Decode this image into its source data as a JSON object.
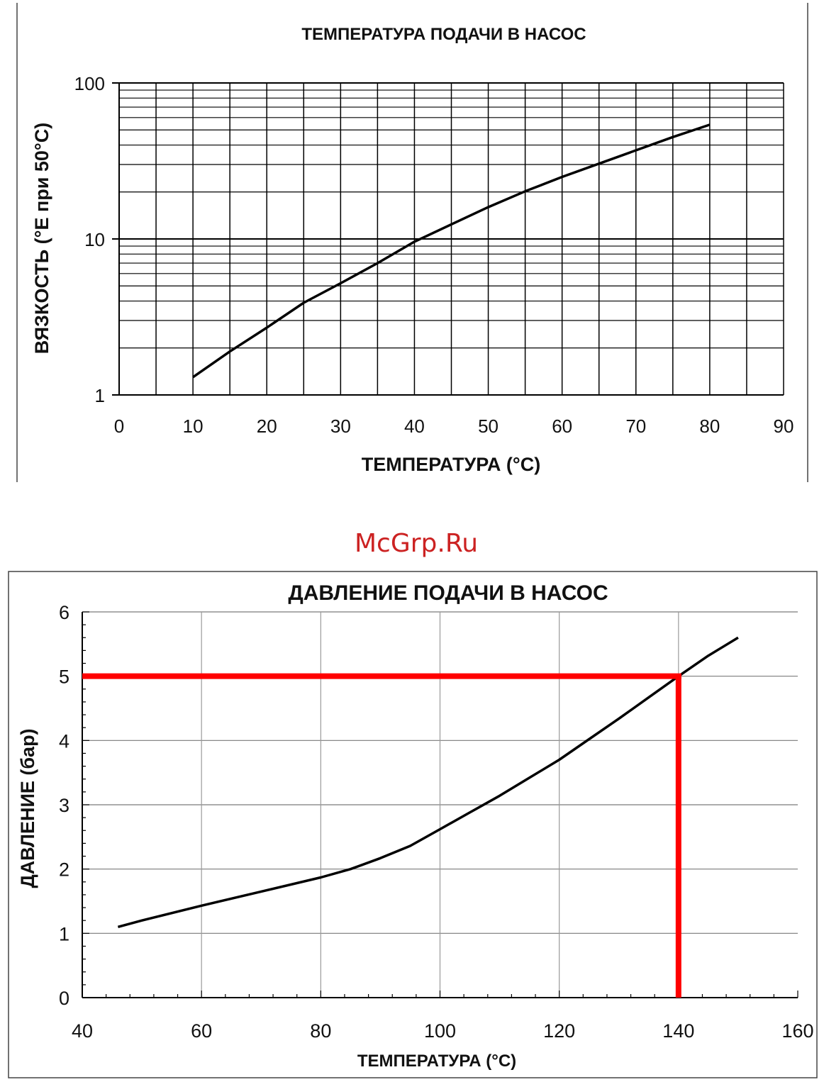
{
  "chart_data": [
    {
      "type": "line",
      "title": "ТЕМПЕРАТУРА ПОДАЧИ В НАСОС",
      "xlabel": "ТЕМПЕРАТУРА (°C)",
      "ylabel": "ВЯЗКОСТЬ (°E при 50°C)",
      "xlim": [
        0,
        90
      ],
      "ylim": [
        1,
        100
      ],
      "y_scale": "log",
      "grid": true,
      "x_ticks": [
        "0",
        "10",
        "20",
        "30",
        "40",
        "50",
        "60",
        "70",
        "80",
        "90"
      ],
      "y_ticks": [
        "1",
        "10",
        "100"
      ],
      "line_color": "#000000",
      "series": [
        {
          "x": [
            10,
            15,
            20,
            25,
            30,
            35,
            40,
            45,
            50,
            55,
            60,
            65,
            70,
            75,
            80
          ],
          "y": [
            1.3,
            1.9,
            2.7,
            3.9,
            5.2,
            7.0,
            9.6,
            12.4,
            16.0,
            20.2,
            25.0,
            30.4,
            37.0,
            45.0,
            54.0
          ]
        }
      ]
    },
    {
      "type": "line",
      "title": "ДАВЛЕНИЕ ПОДАЧИ В НАСОС",
      "xlabel": "ТЕМПЕРАТУРА (°C)",
      "ylabel": "ДАВЛЕНИЕ (бар)",
      "xlim": [
        40,
        160
      ],
      "ylim": [
        0,
        6
      ],
      "grid": true,
      "x_ticks": [
        "40",
        "60",
        "80",
        "100",
        "120",
        "140",
        "160"
      ],
      "y_ticks": [
        "0",
        "1",
        "2",
        "3",
        "4",
        "5",
        "6"
      ],
      "line_color": "#000000",
      "guide_color": "#ff0000",
      "series": [
        {
          "x": [
            46,
            50,
            60,
            70,
            80,
            85,
            90,
            95,
            100,
            105,
            110,
            115,
            120,
            125,
            130,
            135,
            140,
            145,
            150
          ],
          "y": [
            1.1,
            1.2,
            1.43,
            1.65,
            1.87,
            2.0,
            2.17,
            2.36,
            2.62,
            2.88,
            3.14,
            3.42,
            3.7,
            4.02,
            4.34,
            4.67,
            5.0,
            5.32,
            5.6
          ]
        }
      ],
      "guide": {
        "x": 140,
        "y": 5
      }
    }
  ],
  "watermark": "McGrp.Ru",
  "watermark_color": "#cc2222"
}
